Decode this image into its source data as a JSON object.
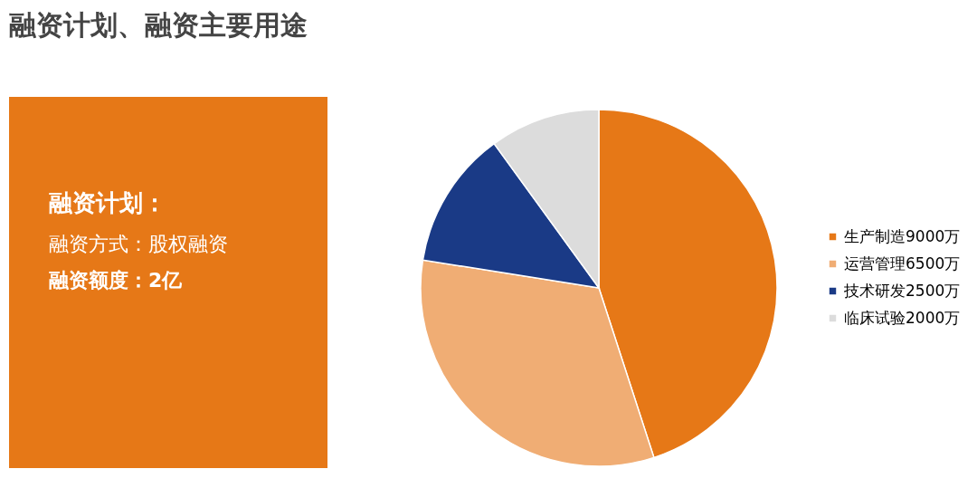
{
  "chart_data": [
    {
      "type": "other",
      "title": "融资计划、融资主要用途",
      "annotations": [
        "融资计划：",
        "融资方式：股权融资",
        "融资额度：2亿"
      ]
    },
    {
      "type": "pie",
      "categories": [
        "生产制造9000万",
        "运营管理6500万",
        "技术研发2500万",
        "临床试验2000万"
      ],
      "values": [
        9000,
        6500,
        2500,
        2000
      ],
      "colors": [
        "#e67817",
        "#f0ad74",
        "#1a3a86",
        "#dcdcdc"
      ],
      "legend": "right"
    }
  ]
}
